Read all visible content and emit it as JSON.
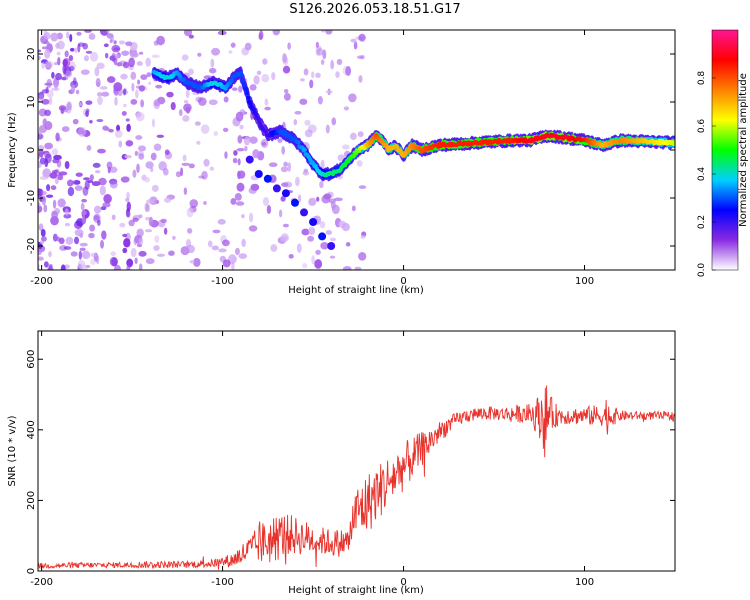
{
  "title": "S126.2026.053.18.51.G17",
  "chart_data": [
    {
      "type": "heatmap",
      "name": "spectrogram",
      "xlabel": "Height of straight line (km)",
      "ylabel": "Frequency (Hz)",
      "xlim": [
        -202,
        150
      ],
      "ylim": [
        -25,
        25
      ],
      "xticks": [
        -200,
        -100,
        0,
        100
      ],
      "yticks": [
        -20,
        -10,
        0,
        10,
        20
      ],
      "colorbar": {
        "label": "Normalized spectral amplitude",
        "range": [
          0.0,
          1.0
        ],
        "ticks": [
          "0.0",
          "0.2",
          "0.4",
          "0.6",
          "0.8"
        ],
        "stops": [
          "#ffffff",
          "#8a2be2",
          "#0000ff",
          "#00d0ff",
          "#00ff00",
          "#ffff00",
          "#ff8000",
          "#ff0000",
          "#ff1493"
        ]
      },
      "ridge": {
        "x": [
          -138,
          -130,
          -125,
          -120,
          -112,
          -105,
          -98,
          -94,
          -90,
          -85,
          -80,
          -75,
          -68,
          -60,
          -55,
          -50,
          -45,
          -40,
          -35,
          -30,
          -25,
          -20,
          -15,
          -12,
          -8,
          -5,
          0,
          5,
          10,
          20,
          40,
          60,
          70,
          80,
          90,
          100,
          110,
          120,
          150
        ],
        "y": [
          16,
          15,
          16,
          14,
          13,
          14,
          13,
          15,
          16,
          10,
          6,
          3,
          4,
          2,
          0,
          -3,
          -5,
          -5,
          -4,
          -2,
          0,
          1,
          3,
          2,
          0,
          1,
          -1,
          1,
          0,
          1,
          1.5,
          2,
          2,
          3,
          2.5,
          2,
          1,
          2,
          1.5
        ],
        "amplitude": [
          0.35,
          0.4,
          0.35,
          0.3,
          0.3,
          0.4,
          0.35,
          0.3,
          0.3,
          0.25,
          0.2,
          0.2,
          0.3,
          0.3,
          0.35,
          0.35,
          0.4,
          0.45,
          0.45,
          0.5,
          0.55,
          0.7,
          0.8,
          0.75,
          0.7,
          0.7,
          0.7,
          0.75,
          0.8,
          0.85,
          0.85,
          0.85,
          0.9,
          0.9,
          0.9,
          0.85,
          0.7,
          0.75,
          0.6
        ]
      },
      "secondary_branch": {
        "x": [
          -85,
          -80,
          -75,
          -70,
          -65,
          -60,
          -55,
          -50,
          -45,
          -40
        ],
        "y": [
          -2,
          -5,
          -6,
          -8,
          -9,
          -11,
          -13,
          -15,
          -18,
          -20
        ]
      }
    },
    {
      "type": "line",
      "name": "snr",
      "xlabel": "Height of straight line (km)",
      "ylabel": "SNR (10 * v/v)",
      "xlim": [
        -202,
        150
      ],
      "ylim": [
        0,
        680
      ],
      "xticks": [
        -200,
        -100,
        0,
        100
      ],
      "yticks": [
        0,
        200,
        400,
        600
      ],
      "color": "#e8322c",
      "series": [
        {
          "name": "SNR",
          "x": [
            -202,
            -180,
            -160,
            -140,
            -120,
            -105,
            -95,
            -90,
            -85,
            -80,
            -75,
            -70,
            -65,
            -60,
            -55,
            -50,
            -45,
            -40,
            -35,
            -30,
            -28,
            -25,
            -20,
            -15,
            -10,
            -5,
            0,
            5,
            10,
            15,
            20,
            25,
            30,
            35,
            40,
            45,
            50,
            55,
            60,
            65,
            70,
            75,
            78,
            80,
            85,
            90,
            95,
            100,
            105,
            110,
            112,
            115,
            120,
            130,
            140,
            150
          ],
          "base": [
            15,
            16,
            17,
            18,
            18,
            22,
            30,
            45,
            60,
            75,
            85,
            95,
            105,
            100,
            95,
            90,
            85,
            80,
            80,
            85,
            150,
            170,
            190,
            220,
            245,
            270,
            295,
            320,
            345,
            370,
            395,
            415,
            430,
            440,
            445,
            447,
            447,
            445,
            445,
            445,
            445,
            440,
            440,
            445,
            440,
            440,
            440,
            440,
            440,
            440,
            440,
            440,
            440,
            440,
            440,
            440
          ],
          "amp": [
            8,
            8,
            8,
            10,
            10,
            12,
            20,
            30,
            40,
            55,
            70,
            70,
            60,
            55,
            50,
            45,
            40,
            40,
            40,
            40,
            70,
            80,
            90,
            80,
            80,
            70,
            70,
            60,
            50,
            40,
            30,
            25,
            20,
            20,
            20,
            20,
            20,
            20,
            25,
            25,
            30,
            60,
            120,
            60,
            30,
            25,
            25,
            25,
            30,
            30,
            60,
            30,
            15,
            12,
            12,
            12
          ]
        }
      ]
    }
  ]
}
